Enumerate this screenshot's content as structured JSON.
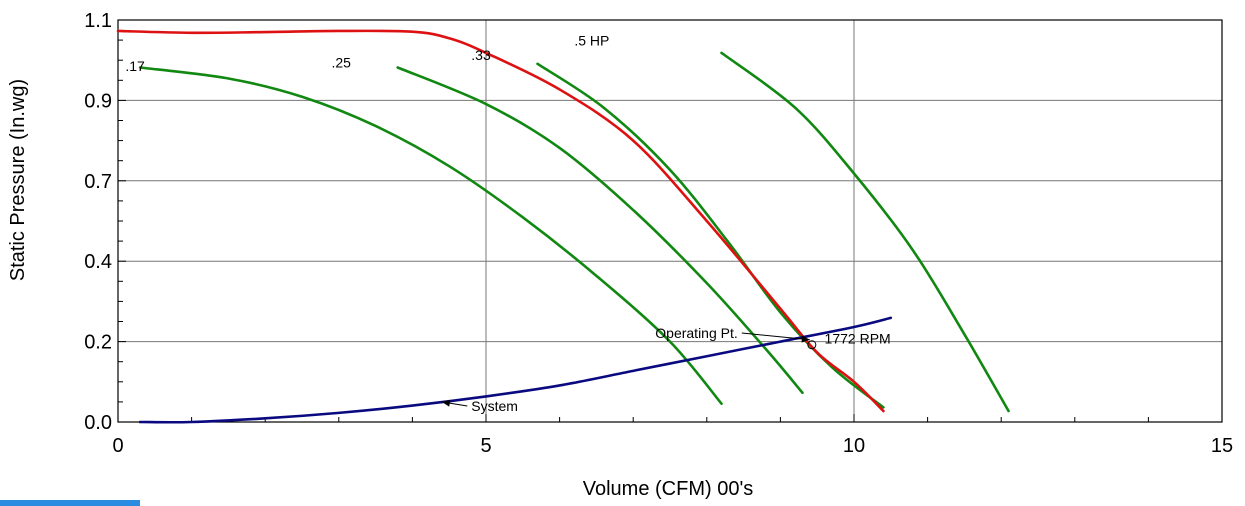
{
  "chart_data": {
    "type": "line",
    "xlabel": "Volume (CFM) 00's",
    "ylabel": "Static Pressure (In.wg)",
    "xlim": [
      0,
      15
    ],
    "ylim": [
      0,
      1.1
    ],
    "x_ticks": [
      "0",
      "5",
      "10",
      "15"
    ],
    "y_ticks": [
      {
        "value": 0.0,
        "label": "0.0"
      },
      {
        "value": 0.22,
        "label": "0.2"
      },
      {
        "value": 0.44,
        "label": "0.4"
      },
      {
        "value": 0.66,
        "label": "0.7"
      },
      {
        "value": 0.88,
        "label": "0.9"
      },
      {
        "value": 1.1,
        "label": "1.1"
      }
    ],
    "grid": true,
    "colors": {
      "fan_curve": "#dd1111",
      "hp_curves": "#118811",
      "system": "#0a0a80"
    },
    "series": [
      {
        "kind": "hp_curve",
        "color": "#118811",
        "points": [
          [
            0.3,
            0.97
          ],
          [
            1.5,
            0.94
          ],
          [
            2.5,
            0.89
          ],
          [
            3.5,
            0.81
          ],
          [
            4.5,
            0.7
          ],
          [
            5.5,
            0.56
          ],
          [
            6.5,
            0.4
          ],
          [
            7.5,
            0.22
          ],
          [
            8.2,
            0.05
          ]
        ]
      },
      {
        "kind": "hp_curve",
        "color": "#118811",
        "points": [
          [
            3.8,
            0.97
          ],
          [
            5,
            0.87
          ],
          [
            6,
            0.75
          ],
          [
            7,
            0.58
          ],
          [
            8,
            0.38
          ],
          [
            8.8,
            0.2
          ],
          [
            9.3,
            0.08
          ]
        ]
      },
      {
        "kind": "hp_curve",
        "color": "#118811",
        "points": [
          [
            5.7,
            0.98
          ],
          [
            6.6,
            0.86
          ],
          [
            7.5,
            0.69
          ],
          [
            8.3,
            0.49
          ],
          [
            9,
            0.3
          ],
          [
            9.7,
            0.15
          ],
          [
            10.4,
            0.04
          ]
        ]
      },
      {
        "kind": "hp_curve",
        "color": "#118811",
        "points": [
          [
            8.2,
            1.01
          ],
          [
            9.2,
            0.86
          ],
          [
            10,
            0.68
          ],
          [
            10.8,
            0.47
          ],
          [
            11.5,
            0.24
          ],
          [
            12.1,
            0.03
          ]
        ]
      },
      {
        "name": "1772 RPM",
        "kind": "fan_curve",
        "color": "#dd1111",
        "points": [
          [
            0,
            1.07
          ],
          [
            1,
            1.065
          ],
          [
            2,
            1.067
          ],
          [
            3,
            1.07
          ],
          [
            4,
            1.068
          ],
          [
            4.5,
            1.05
          ],
          [
            5,
            1.01
          ],
          [
            6,
            0.91
          ],
          [
            7,
            0.77
          ],
          [
            8,
            0.55
          ],
          [
            9,
            0.31
          ],
          [
            9.5,
            0.19
          ],
          [
            10,
            0.11
          ],
          [
            10.4,
            0.03
          ]
        ]
      },
      {
        "name": "System",
        "kind": "system",
        "color": "#0a0a80",
        "points": [
          [
            0.3,
            0
          ],
          [
            1,
            0
          ],
          [
            2,
            0.01
          ],
          [
            3,
            0.025
          ],
          [
            4,
            0.045
          ],
          [
            5,
            0.07
          ],
          [
            6,
            0.1
          ],
          [
            7,
            0.14
          ],
          [
            8,
            0.18
          ],
          [
            9,
            0.22
          ],
          [
            10,
            0.26
          ],
          [
            10.5,
            0.285
          ]
        ]
      }
    ],
    "curve_labels": [
      {
        "text": ".17",
        "x": 0.1,
        "y": 0.96
      },
      {
        "text": ".25",
        "x": 2.9,
        "y": 0.97
      },
      {
        "text": ".33",
        "x": 4.8,
        "y": 0.99
      },
      {
        "text": ".5 HP",
        "x": 6.2,
        "y": 1.03
      }
    ],
    "annotations": [
      {
        "text": "Operating Pt.",
        "x": 7.3,
        "y": 0.23,
        "arrow_to": [
          9.4,
          0.225
        ]
      },
      {
        "text": "1772 RPM",
        "x": 9.6,
        "y": 0.215
      },
      {
        "text": "System",
        "x": 4.8,
        "y": 0.03,
        "arrow_to": [
          4.4,
          0.055
        ]
      }
    ]
  }
}
